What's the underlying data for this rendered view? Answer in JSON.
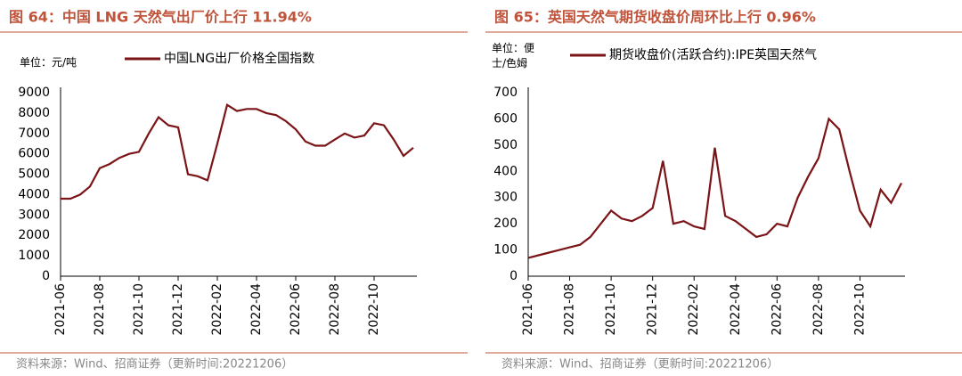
{
  "chart_data": [
    {
      "type": "line",
      "title": "图 64：中国 LNG 天然气出厂价上行 11.94%",
      "unit_label": "单位：元/吨",
      "source": "资料来源：Wind、招商证券（更新时间:20221206）",
      "categories": [
        "2021-06",
        null,
        null,
        null,
        "2021-08",
        null,
        null,
        null,
        "2021-10",
        null,
        null,
        null,
        "2021-12",
        null,
        null,
        null,
        "2022-02",
        null,
        null,
        null,
        "2022-04",
        null,
        null,
        null,
        "2022-06",
        null,
        null,
        null,
        "2022-08",
        null,
        null,
        null,
        "2022-10",
        null,
        null,
        null,
        null
      ],
      "series": [
        {
          "name": "中国LNG出厂价格全国指数",
          "color": "#7b1416",
          "values": [
            3800,
            3800,
            4000,
            4400,
            5300,
            5500,
            5800,
            6000,
            6100,
            7000,
            7800,
            7400,
            7300,
            5000,
            4900,
            4700,
            6500,
            8400,
            8100,
            8200,
            8200,
            8000,
            7900,
            7600,
            7200,
            6600,
            6400,
            6400,
            6700,
            7000,
            6800,
            6900,
            7500,
            7400,
            6700,
            5900,
            6300
          ]
        }
      ],
      "ylim": [
        0,
        9000
      ],
      "yticks": [
        0,
        1000,
        2000,
        3000,
        4000,
        5000,
        6000,
        7000,
        8000,
        9000
      ]
    },
    {
      "type": "line",
      "title": "图 65：英国天然气期货收盘价周环比上行 0.96%",
      "unit_label": "单位：便士/色姆",
      "source": "资料来源：Wind、招商证券（更新时间:20221206）",
      "categories": [
        "2021-06",
        null,
        null,
        null,
        "2021-08",
        null,
        null,
        null,
        "2021-10",
        null,
        null,
        null,
        "2021-12",
        null,
        null,
        null,
        "2022-02",
        null,
        null,
        null,
        "2022-04",
        null,
        null,
        null,
        "2022-06",
        null,
        null,
        null,
        "2022-08",
        null,
        null,
        null,
        "2022-10",
        null,
        null,
        null,
        null
      ],
      "series": [
        {
          "name": "期货收盘价(活跃合约):IPE英国天然气",
          "color": "#7b1416",
          "values": [
            70,
            80,
            90,
            100,
            110,
            120,
            150,
            200,
            250,
            220,
            210,
            230,
            260,
            440,
            200,
            210,
            190,
            180,
            490,
            230,
            210,
            180,
            150,
            160,
            200,
            190,
            300,
            380,
            450,
            600,
            560,
            400,
            250,
            190,
            330,
            280,
            355
          ]
        }
      ],
      "ylim": [
        0,
        700
      ],
      "yticks": [
        0,
        100,
        200,
        300,
        400,
        500,
        600,
        700
      ]
    }
  ]
}
